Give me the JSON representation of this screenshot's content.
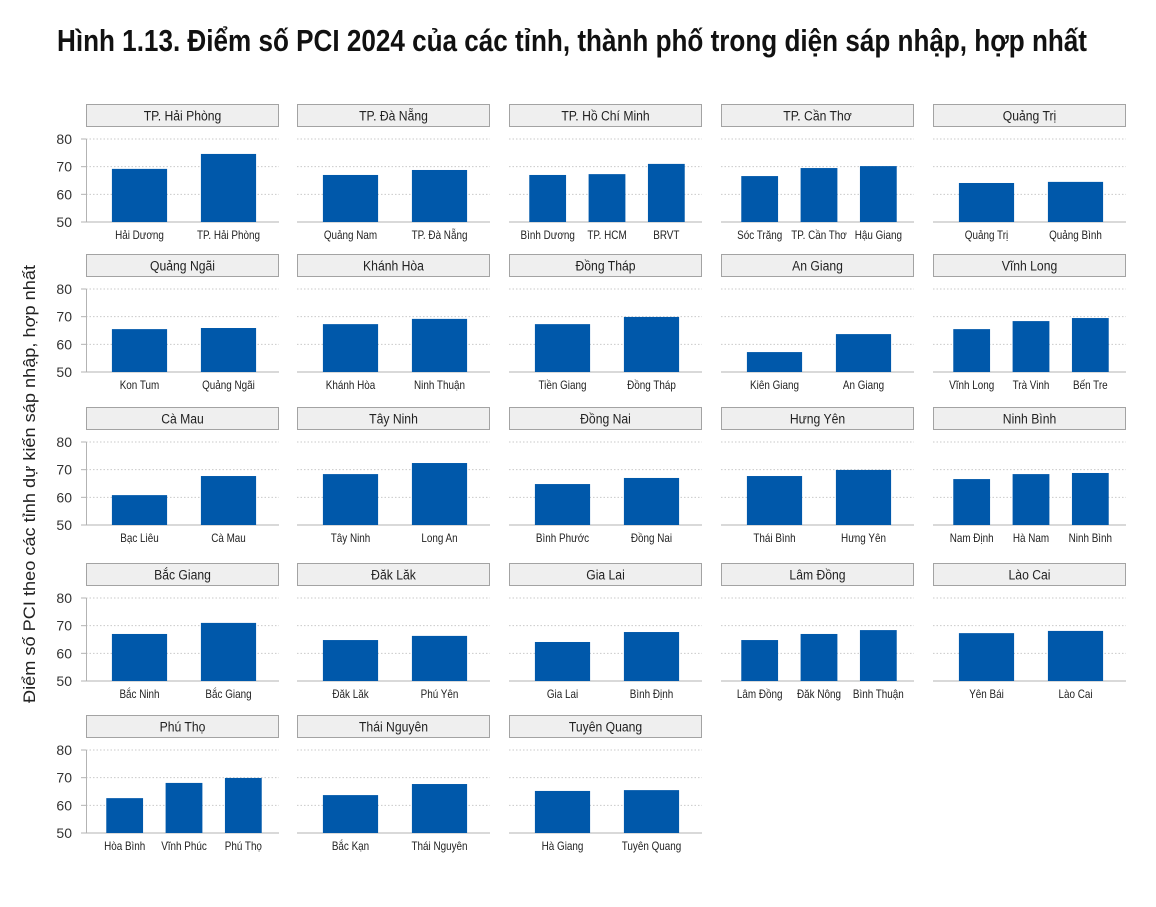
{
  "colors": {
    "bar": "#0058aa",
    "facet_header_fill": "#efefef",
    "facet_header_border": "#a3a3a3",
    "grid": "#c9c9c9",
    "axis": "#b3b3b3"
  },
  "chart_data": {
    "type": "bar",
    "title": "Hình 1.13. Điểm số PCI 2024 của các tỉnh, thành phố trong diện sáp nhập, hợp nhất",
    "ylabel": "Điểm số PCI theo các tỉnh dự kiến sáp nhập, hợp nhất",
    "ylim": [
      50,
      80
    ],
    "yticks": [
      50,
      60,
      70,
      80
    ],
    "grid": true,
    "legend": "none",
    "facets": [
      {
        "title": "TP. Hải Phòng",
        "categories": [
          "Hải Dương",
          "TP. Hải Phòng"
        ],
        "values": [
          69.2,
          74.6
        ]
      },
      {
        "title": "TP. Đà Nẵng",
        "categories": [
          "Quảng Nam",
          "TP. Đà Nẵng"
        ],
        "values": [
          67.0,
          68.8
        ]
      },
      {
        "title": "TP. Hồ Chí Minh",
        "categories": [
          "Bình Dương",
          "TP. HCM",
          "BRVT"
        ],
        "values": [
          67.0,
          67.3,
          71.0
        ]
      },
      {
        "title": "TP. Cần Thơ",
        "categories": [
          "Sóc Trăng",
          "TP. Cần Thơ",
          "Hậu Giang"
        ],
        "values": [
          66.6,
          69.5,
          70.2
        ]
      },
      {
        "title": "Quảng Trị",
        "categories": [
          "Quảng Trị",
          "Quảng Bình"
        ],
        "values": [
          64.1,
          64.5
        ]
      },
      {
        "title": "Quảng Ngãi",
        "categories": [
          "Kon Tum",
          "Quảng Ngãi"
        ],
        "values": [
          65.5,
          65.9
        ]
      },
      {
        "title": "Khánh Hòa",
        "categories": [
          "Khánh Hòa",
          "Ninh Thuận"
        ],
        "values": [
          67.3,
          69.2
        ]
      },
      {
        "title": "Đồng Tháp",
        "categories": [
          "Tiền Giang",
          "Đồng Tháp"
        ],
        "values": [
          67.3,
          69.9
        ]
      },
      {
        "title": "An Giang",
        "categories": [
          "Kiên Giang",
          "An Giang"
        ],
        "values": [
          57.2,
          63.7
        ]
      },
      {
        "title": "Vĩnh Long",
        "categories": [
          "Vĩnh Long",
          "Trà Vinh",
          "Bến Tre"
        ],
        "values": [
          65.5,
          68.4,
          69.5
        ]
      },
      {
        "title": "Cà Mau",
        "categories": [
          "Bạc Liêu",
          "Cà Mau"
        ],
        "values": [
          60.8,
          67.7
        ]
      },
      {
        "title": "Tây Ninh",
        "categories": [
          "Tây Ninh",
          "Long An"
        ],
        "values": [
          68.4,
          72.4
        ]
      },
      {
        "title": "Đồng Nai",
        "categories": [
          "Bình Phước",
          "Đồng Nai"
        ],
        "values": [
          64.8,
          67.0
        ]
      },
      {
        "title": "Hưng Yên",
        "categories": [
          "Thái Bình",
          "Hưng Yên"
        ],
        "values": [
          67.7,
          69.9
        ]
      },
      {
        "title": "Ninh Bình",
        "categories": [
          "Nam Định",
          "Hà Nam",
          "Ninh Bình"
        ],
        "values": [
          66.6,
          68.4,
          68.8
        ]
      },
      {
        "title": "Bắc Giang",
        "categories": [
          "Bắc Ninh",
          "Bắc Giang"
        ],
        "values": [
          67.0,
          71.0
        ]
      },
      {
        "title": "Đăk Lăk",
        "categories": [
          "Đăk Lăk",
          "Phú Yên"
        ],
        "values": [
          64.8,
          66.3
        ]
      },
      {
        "title": "Gia Lai",
        "categories": [
          "Gia Lai",
          "Bình Định"
        ],
        "values": [
          64.1,
          67.7
        ]
      },
      {
        "title": "Lâm Đồng",
        "categories": [
          "Lâm Đồng",
          "Đăk Nông",
          "Bình Thuận"
        ],
        "values": [
          64.8,
          67.0,
          68.4
        ]
      },
      {
        "title": "Lào Cai",
        "categories": [
          "Yên Bái",
          "Lào Cai"
        ],
        "values": [
          67.3,
          68.1
        ]
      },
      {
        "title": "Phú Thọ",
        "categories": [
          "Hòa Bình",
          "Vĩnh Phúc",
          "Phú Thọ"
        ],
        "values": [
          62.6,
          68.1,
          69.9
        ]
      },
      {
        "title": "Thái Nguyên",
        "categories": [
          "Bắc Kạn",
          "Thái Nguyên"
        ],
        "values": [
          63.7,
          67.7
        ]
      },
      {
        "title": "Tuyên Quang",
        "categories": [
          "Hà Giang",
          "Tuyên Quang"
        ],
        "values": [
          65.2,
          65.5
        ]
      }
    ]
  }
}
